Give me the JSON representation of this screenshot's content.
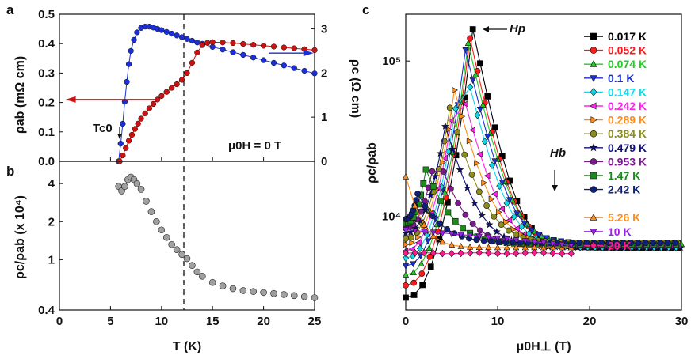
{
  "panels": {
    "a_letter": "a",
    "b_letter": "b",
    "c_letter": "c"
  },
  "chart_data": [
    {
      "panel": "a",
      "type": "scatter",
      "xlim": [
        0,
        25
      ],
      "ylim_left": [
        0,
        0.5
      ],
      "ylim_right": [
        0,
        3.33
      ],
      "ylabel_left": "ρab (mΩ cm)",
      "ylabel_right": "ρc (Ω cm)",
      "yticks_left": [
        "0.0",
        "0.1",
        "0.2",
        "0.3",
        "0.4",
        "0.5"
      ],
      "yticks_right": [
        "0",
        "1",
        "2",
        "3"
      ],
      "annotations": {
        "tc": "Tc0",
        "field": "μ0H = 0 T"
      },
      "series": [
        {
          "name": "ρc",
          "axis": "right",
          "color": "#1a2fd6",
          "x": [
            5.8,
            6.0,
            6.2,
            6.4,
            6.6,
            6.8,
            7.0,
            7.3,
            7.6,
            8.0,
            8.4,
            8.8,
            9.2,
            9.6,
            10.0,
            10.5,
            11,
            11.5,
            12,
            12.5,
            13,
            13.5,
            14,
            15,
            16,
            17,
            18,
            19,
            20,
            21,
            22,
            23,
            24,
            25
          ],
          "y": [
            0.0,
            0.4,
            0.85,
            1.35,
            1.8,
            2.2,
            2.5,
            2.75,
            2.92,
            3.02,
            3.05,
            3.05,
            3.03,
            3.0,
            2.97,
            2.93,
            2.89,
            2.85,
            2.81,
            2.77,
            2.73,
            2.69,
            2.66,
            2.59,
            2.53,
            2.47,
            2.41,
            2.35,
            2.29,
            2.23,
            2.17,
            2.11,
            2.05,
            1.99
          ]
        },
        {
          "name": "ρab",
          "axis": "left",
          "color": "#cc1111",
          "x": [
            5.9,
            6.2,
            6.5,
            6.8,
            7.1,
            7.4,
            7.7,
            8.0,
            8.4,
            8.8,
            9.2,
            9.6,
            10.0,
            10.5,
            11,
            11.5,
            12,
            12.5,
            13,
            13.5,
            14,
            14.5,
            15,
            16,
            17,
            18,
            19,
            20,
            21,
            22,
            23,
            24,
            25
          ],
          "y": [
            0.0,
            0.02,
            0.045,
            0.07,
            0.09,
            0.11,
            0.128,
            0.145,
            0.163,
            0.18,
            0.195,
            0.21,
            0.222,
            0.236,
            0.25,
            0.262,
            0.277,
            0.3,
            0.335,
            0.37,
            0.395,
            0.403,
            0.405,
            0.404,
            0.402,
            0.399,
            0.396,
            0.393,
            0.39,
            0.387,
            0.384,
            0.381,
            0.378
          ]
        }
      ]
    },
    {
      "panel": "b",
      "type": "scatter",
      "xlim": [
        0,
        25
      ],
      "ylim": [
        0.4,
        6
      ],
      "yscale": "log",
      "xlabel": "T (K)",
      "ylabel": "ρc/ρab (x 10⁴)",
      "xticks": [
        "0",
        "5",
        "10",
        "15",
        "20",
        "25"
      ],
      "yticks": [
        "0.4",
        "1",
        "2",
        "4"
      ],
      "series": [
        {
          "name": "ρc/ρab",
          "color": "#a0a0a0",
          "x": [
            5.8,
            6.1,
            6.4,
            6.7,
            7.0,
            7.3,
            7.6,
            8.0,
            8.5,
            9.0,
            9.5,
            10.0,
            10.5,
            11,
            11.5,
            12,
            12.5,
            13,
            13.5,
            14,
            15,
            16,
            17,
            18,
            19,
            20,
            21,
            22,
            23,
            24,
            25
          ],
          "y": [
            3.8,
            3.5,
            3.8,
            4.3,
            4.5,
            4.3,
            4.0,
            3.6,
            2.9,
            2.4,
            2.0,
            1.72,
            1.5,
            1.32,
            1.2,
            1.1,
            1.02,
            0.9,
            0.8,
            0.74,
            0.66,
            0.62,
            0.59,
            0.57,
            0.56,
            0.55,
            0.54,
            0.53,
            0.52,
            0.51,
            0.5
          ]
        }
      ]
    },
    {
      "panel": "c",
      "type": "line",
      "xlim": [
        0,
        30
      ],
      "ylim": [
        2500,
        200000
      ],
      "yscale": "log",
      "xlabel": "μ0H⊥ (T)",
      "ylabel": "ρc/ρab",
      "xticks": [
        "0",
        "10",
        "20",
        "30"
      ],
      "yticks": [
        "10⁴",
        "10⁵"
      ],
      "annotations": {
        "hp": "Hp",
        "hb": "Hb"
      },
      "series": [
        {
          "name": "0.017 K",
          "color": "#000000",
          "marker": "square",
          "peak_x": 7.3,
          "peak_y": 160000
        },
        {
          "name": "0.052 K",
          "color": "#ff1a1a",
          "marker": "circle",
          "peak_x": 7.0,
          "peak_y": 140000
        },
        {
          "name": "0.074 K",
          "color": "#22cc22",
          "marker": "triangle-up",
          "peak_x": 6.8,
          "peak_y": 130000
        },
        {
          "name": "0.1 K",
          "color": "#1a2fd6",
          "marker": "triangle-down",
          "peak_x": 6.5,
          "peak_y": 118000
        },
        {
          "name": "0.147 K",
          "color": "#11d8e8",
          "marker": "diamond",
          "peak_x": 6.2,
          "peak_y": 105000
        },
        {
          "name": "0.242 K",
          "color": "#ff22ee",
          "marker": "triangle-left",
          "peak_x": 5.7,
          "peak_y": 80000
        },
        {
          "name": "0.289 K",
          "color": "#ff8c1a",
          "marker": "triangle-right",
          "peak_x": 5.3,
          "peak_y": 65000
        },
        {
          "name": "0.384 K",
          "color": "#8c8c1a",
          "marker": "hexagon",
          "peak_x": 4.8,
          "peak_y": 50000
        },
        {
          "name": "0.479 K",
          "color": "#10107a",
          "marker": "star",
          "peak_x": 4.3,
          "peak_y": 38000
        },
        {
          "name": "0.953 K",
          "color": "#7a1a8c",
          "marker": "pentagon",
          "peak_x": 3.3,
          "peak_y": 26000
        },
        {
          "name": "1.47 K",
          "color": "#1a8c1a",
          "marker": "square",
          "peak_x": 2.2,
          "peak_y": 20000
        },
        {
          "name": "2.42 K",
          "color": "#10207a",
          "marker": "circle",
          "peak_x": 1.3,
          "peak_y": 14000
        },
        {
          "name": "5.26 K",
          "color": "#ff8c1a",
          "marker": "triangle-up",
          "peak_x": 0.2,
          "peak_y": 18000
        },
        {
          "name": "10 K",
          "color": "#9b20e8",
          "marker": "triangle-down",
          "peak_x": 0.0,
          "peak_y": 8200
        },
        {
          "name": "20 K",
          "color": "#ff1a8c",
          "marker": "diamond",
          "peak_x": 0.0,
          "peak_y": 6000
        }
      ]
    }
  ]
}
